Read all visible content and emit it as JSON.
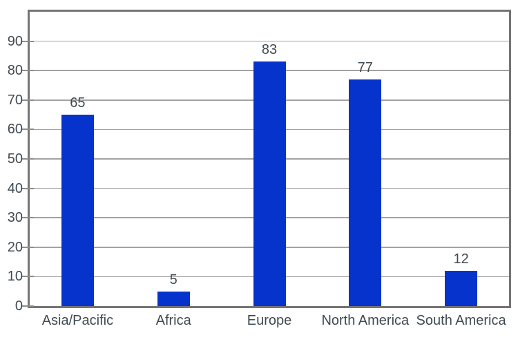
{
  "chart_data": {
    "type": "bar",
    "title": "",
    "xlabel": "",
    "ylabel": "",
    "categories": [
      "Asia/Pacific",
      "Africa",
      "Europe",
      "North America",
      "South America"
    ],
    "values": [
      65,
      5,
      83,
      77,
      12
    ],
    "value_labels": [
      "65",
      "5",
      "83",
      "77",
      "12"
    ],
    "y_ticks": [
      0,
      10,
      20,
      30,
      40,
      50,
      60,
      70,
      80,
      90
    ],
    "ylim": [
      0,
      100
    ],
    "grid": "horizontal",
    "legend": "none",
    "colors": {
      "bar": "#0733cd",
      "plot_border": "#747474",
      "gridline": "#a2a2a2",
      "tick": "#8d8d8d",
      "text": "#3f4a52",
      "background": "#ffffff"
    }
  }
}
